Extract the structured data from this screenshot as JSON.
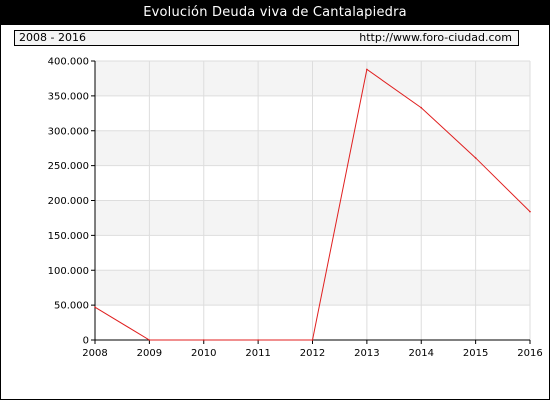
{
  "title": "Evolución Deuda viva de Cantalapiedra",
  "period": "2008 - 2016",
  "source": "http://www.foro-ciudad.com",
  "colors": {
    "line": "#e01f1f",
    "band": "#f4f4f4",
    "grid": "#dddddd",
    "title_bg": "#000000"
  },
  "chart_data": {
    "type": "line",
    "title": "Evolución Deuda viva de Cantalapiedra",
    "xlabel": "",
    "ylabel": "",
    "x": [
      2008,
      2009,
      2010,
      2011,
      2012,
      2013,
      2014,
      2015,
      2016
    ],
    "series": [
      {
        "values": [
          47000,
          0,
          0,
          0,
          0,
          388000,
          333000,
          261000,
          184000
        ]
      }
    ],
    "ylim": [
      0,
      400000
    ],
    "yticks": [
      0,
      50000,
      100000,
      150000,
      200000,
      250000,
      300000,
      350000,
      400000
    ],
    "ytick_labels": [
      "0",
      "50.000",
      "100.000",
      "150.000",
      "200.000",
      "250.000",
      "300.000",
      "350.000",
      "400.000"
    ],
    "xtick_labels": [
      "2008",
      "2009",
      "2010",
      "2011",
      "2012",
      "2013",
      "2014",
      "2015",
      "2016"
    ],
    "grid": true,
    "legend": "none"
  }
}
